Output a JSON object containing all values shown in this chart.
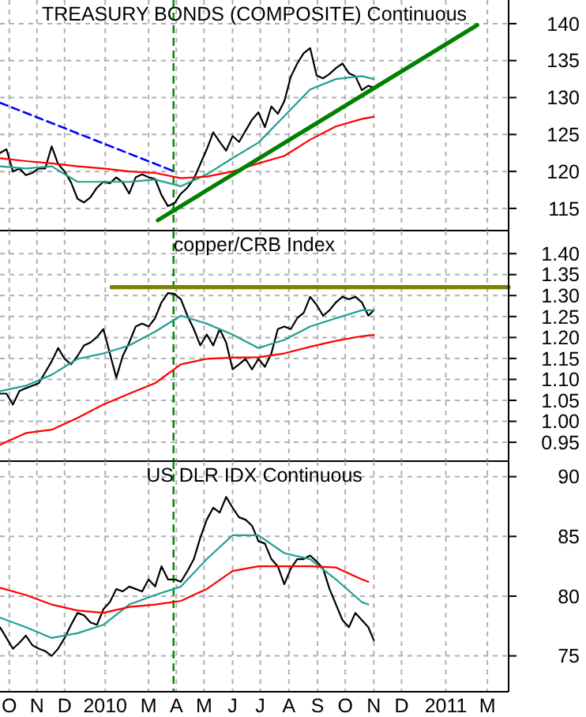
{
  "chart_data": [
    {
      "type": "line",
      "title": "TREASURY BONDS (COMPOSITE) Continuous",
      "xlim": [
        "2009-10-06",
        "2011-04-10"
      ],
      "ylim": [
        112,
        143.2
      ],
      "yticks": [
        115,
        120,
        125,
        130,
        135,
        140
      ],
      "grid": true,
      "tick_labels": "y",
      "xticks": [
        {
          "value": "2009-10-16",
          "label": null
        },
        {
          "value": "2009-11-15",
          "label": null
        },
        {
          "value": "2009-12-15",
          "label": null
        },
        {
          "value": "2010-01-28",
          "label": null
        },
        {
          "value": "2010-03-16",
          "label": null
        },
        {
          "value": "2010-04-15",
          "label": null
        },
        {
          "value": "2010-05-15",
          "label": null
        },
        {
          "value": "2010-06-15",
          "label": null
        },
        {
          "value": "2010-07-15",
          "label": null
        },
        {
          "value": "2010-08-15",
          "label": null
        },
        {
          "value": "2010-09-15",
          "label": null
        },
        {
          "value": "2010-10-15",
          "label": null
        },
        {
          "value": "2010-11-15",
          "label": null
        },
        {
          "value": "2010-12-15",
          "label": null
        },
        {
          "value": "2011-02-01",
          "label": null
        },
        {
          "value": "2011-03-18",
          "label": null
        }
      ],
      "ref_lines": [
        {
          "axis": "x",
          "value": "2010-04-12",
          "color": "#008000",
          "line_style": "dashed"
        }
      ],
      "series": [
        {
          "color": "#000000",
          "x": [
            "2009-10-06",
            "2009-10-13",
            "2009-10-20",
            "2009-10-27",
            "2009-11-03",
            "2009-11-10",
            "2009-11-17",
            "2009-11-24",
            "2009-12-01",
            "2009-12-08",
            "2009-12-15",
            "2009-12-22",
            "2009-12-29",
            "2010-01-05",
            "2010-01-12",
            "2010-01-19",
            "2010-01-26",
            "2010-02-02",
            "2010-02-09",
            "2010-02-16",
            "2010-02-23",
            "2010-03-02",
            "2010-03-09",
            "2010-03-16",
            "2010-03-23",
            "2010-03-30",
            "2010-04-06",
            "2010-04-13",
            "2010-04-20",
            "2010-04-27",
            "2010-05-04",
            "2010-05-11",
            "2010-05-18",
            "2010-05-25",
            "2010-06-01",
            "2010-06-08",
            "2010-06-15",
            "2010-06-22",
            "2010-06-29",
            "2010-07-06",
            "2010-07-13",
            "2010-07-20",
            "2010-07-27",
            "2010-08-03",
            "2010-08-10",
            "2010-08-17",
            "2010-08-24",
            "2010-08-31",
            "2010-09-07",
            "2010-09-14",
            "2010-09-21",
            "2010-09-28",
            "2010-10-05",
            "2010-10-12",
            "2010-10-19",
            "2010-10-26",
            "2010-11-02",
            "2010-11-09",
            "2010-11-15"
          ],
          "values": [
            122.5,
            123.0,
            120.0,
            120.4,
            119.5,
            119.8,
            120.4,
            120.4,
            123.4,
            121.0,
            120.0,
            118.5,
            116.3,
            115.8,
            116.5,
            117.8,
            118.6,
            118.4,
            119.2,
            118.5,
            117.0,
            119.2,
            119.6,
            119.2,
            119.0,
            116.8,
            115.3,
            115.7,
            117.0,
            117.8,
            119.0,
            121.0,
            123.0,
            125.3,
            124.0,
            122.8,
            124.8,
            124.0,
            125.5,
            127.0,
            128.0,
            126.0,
            128.8,
            127.8,
            129.5,
            132.8,
            134.6,
            136.0,
            136.7,
            133.0,
            132.6,
            133.2,
            134.0,
            134.6,
            133.3,
            132.9,
            131.0,
            131.6,
            131.3
          ]
        },
        {
          "color": "#20a090",
          "x": [
            "2009-10-06",
            "2009-11-03",
            "2009-12-01",
            "2009-12-29",
            "2010-01-26",
            "2010-02-23",
            "2010-03-23",
            "2010-04-20",
            "2010-05-18",
            "2010-06-15",
            "2010-07-13",
            "2010-08-10",
            "2010-09-07",
            "2010-10-05",
            "2010-11-02",
            "2010-11-15"
          ],
          "values": [
            120.7,
            120.4,
            120.7,
            118.6,
            118.6,
            118.6,
            118.9,
            118.0,
            119.6,
            121.8,
            123.9,
            127.5,
            131.1,
            132.5,
            132.9,
            132.5
          ]
        },
        {
          "color": "#ff0000",
          "x": [
            "2009-10-06",
            "2009-11-03",
            "2009-12-01",
            "2009-12-29",
            "2010-01-26",
            "2010-02-23",
            "2010-03-23",
            "2010-04-20",
            "2010-05-18",
            "2010-06-15",
            "2010-07-13",
            "2010-08-10",
            "2010-09-07",
            "2010-10-05",
            "2010-11-02",
            "2010-11-15"
          ],
          "values": [
            121.8,
            121.4,
            121.1,
            120.7,
            120.4,
            120.0,
            119.8,
            119.1,
            119.3,
            120.0,
            121.1,
            122.1,
            124.3,
            126.1,
            127.1,
            127.4
          ]
        },
        {
          "color": "#0000ff",
          "line_style": "dashed",
          "x": [
            "2009-10-06",
            "2010-04-11"
          ],
          "values": [
            129.3,
            120.1
          ]
        },
        {
          "color": "#008000",
          "x": [
            "2010-03-26",
            "2011-03-07"
          ],
          "values": [
            113.4,
            139.8
          ]
        }
      ]
    },
    {
      "type": "line",
      "title": "copper/CRB Index",
      "xlim": [
        "2009-10-06",
        "2011-04-10"
      ],
      "ylim": [
        0.905,
        1.455
      ],
      "grid": true,
      "tick_labels": "y",
      "yticks": [
        0.95,
        {
          "value": 1.0,
          "label": "1.00"
        },
        1.05,
        {
          "value": 1.1,
          "label": "1.10"
        },
        1.15,
        {
          "value": 1.2,
          "label": "1.20"
        },
        1.25,
        {
          "value": 1.3,
          "label": "1.30"
        },
        1.35,
        {
          "value": 1.4,
          "label": "1.40"
        }
      ],
      "xticks": [
        {
          "value": "2009-10-16",
          "label": null
        },
        {
          "value": "2009-11-15",
          "label": null
        },
        {
          "value": "2009-12-15",
          "label": null
        },
        {
          "value": "2010-01-28",
          "label": null
        },
        {
          "value": "2010-03-16",
          "label": null
        },
        {
          "value": "2010-04-15",
          "label": null
        },
        {
          "value": "2010-05-15",
          "label": null
        },
        {
          "value": "2010-06-15",
          "label": null
        },
        {
          "value": "2010-07-15",
          "label": null
        },
        {
          "value": "2010-08-15",
          "label": null
        },
        {
          "value": "2010-09-15",
          "label": null
        },
        {
          "value": "2010-10-15",
          "label": null
        },
        {
          "value": "2010-11-15",
          "label": null
        },
        {
          "value": "2010-12-15",
          "label": null
        },
        {
          "value": "2011-02-01",
          "label": null
        },
        {
          "value": "2011-03-18",
          "label": null
        }
      ],
      "ref_lines": [
        {
          "axis": "x",
          "value": "2010-04-12",
          "color": "#008000",
          "line_style": "dashed"
        }
      ],
      "series": [
        {
          "color": "#000000",
          "x": [
            "2009-10-06",
            "2009-10-13",
            "2009-10-20",
            "2009-10-27",
            "2009-11-03",
            "2009-11-10",
            "2009-11-17",
            "2009-11-24",
            "2009-12-01",
            "2009-12-08",
            "2009-12-15",
            "2009-12-22",
            "2009-12-29",
            "2010-01-05",
            "2010-01-12",
            "2010-01-19",
            "2010-01-26",
            "2010-02-02",
            "2010-02-09",
            "2010-02-16",
            "2010-02-23",
            "2010-03-02",
            "2010-03-09",
            "2010-03-16",
            "2010-03-23",
            "2010-03-30",
            "2010-04-06",
            "2010-04-13",
            "2010-04-20",
            "2010-04-27",
            "2010-05-04",
            "2010-05-11",
            "2010-05-18",
            "2010-05-25",
            "2010-06-01",
            "2010-06-08",
            "2010-06-15",
            "2010-06-22",
            "2010-06-29",
            "2010-07-06",
            "2010-07-13",
            "2010-07-20",
            "2010-07-27",
            "2010-08-03",
            "2010-08-10",
            "2010-08-17",
            "2010-08-24",
            "2010-08-31",
            "2010-09-07",
            "2010-09-14",
            "2010-09-21",
            "2010-09-28",
            "2010-10-05",
            "2010-10-12",
            "2010-10-19",
            "2010-10-26",
            "2010-11-02",
            "2010-11-09",
            "2010-11-15"
          ],
          "values": [
            1.066,
            1.066,
            1.04,
            1.072,
            1.079,
            1.085,
            1.091,
            1.117,
            1.143,
            1.175,
            1.149,
            1.136,
            1.156,
            1.181,
            1.188,
            1.201,
            1.22,
            1.162,
            1.104,
            1.156,
            1.188,
            1.226,
            1.233,
            1.226,
            1.246,
            1.284,
            1.306,
            1.304,
            1.291,
            1.252,
            1.22,
            1.181,
            1.207,
            1.181,
            1.22,
            1.188,
            1.124,
            1.136,
            1.149,
            1.124,
            1.149,
            1.13,
            1.162,
            1.22,
            1.226,
            1.22,
            1.246,
            1.259,
            1.297,
            1.278,
            1.252,
            1.265,
            1.284,
            1.297,
            1.291,
            1.297,
            1.284,
            1.252,
            1.265
          ]
        },
        {
          "color": "#20a090",
          "x": [
            "2009-10-06",
            "2009-11-03",
            "2009-12-01",
            "2009-12-29",
            "2010-01-26",
            "2010-02-23",
            "2010-03-23",
            "2010-04-20",
            "2010-05-18",
            "2010-06-15",
            "2010-07-13",
            "2010-08-10",
            "2010-09-07",
            "2010-10-05",
            "2010-11-02",
            "2010-11-15"
          ],
          "values": [
            1.072,
            1.085,
            1.111,
            1.149,
            1.162,
            1.181,
            1.214,
            1.252,
            1.233,
            1.207,
            1.175,
            1.194,
            1.226,
            1.246,
            1.265,
            1.265
          ]
        },
        {
          "color": "#ff0000",
          "x": [
            "2009-10-06",
            "2009-11-03",
            "2009-12-01",
            "2009-12-29",
            "2010-01-26",
            "2010-02-23",
            "2010-03-23",
            "2010-04-20",
            "2010-05-18",
            "2010-06-15",
            "2010-07-13",
            "2010-08-10",
            "2010-09-07",
            "2010-10-05",
            "2010-11-02",
            "2010-11-15"
          ],
          "values": [
            0.944,
            0.972,
            0.98,
            1.008,
            1.04,
            1.066,
            1.091,
            1.136,
            1.149,
            1.152,
            1.153,
            1.162,
            1.178,
            1.192,
            1.203,
            1.206
          ]
        },
        {
          "color": "#808000",
          "x": [
            "2010-02-04",
            "2011-04-10"
          ],
          "values": [
            1.32,
            1.32
          ]
        }
      ]
    },
    {
      "type": "line",
      "title": "US DLR IDX Continuous",
      "xlim": [
        "2009-10-06",
        "2011-04-10"
      ],
      "ylim": [
        72,
        91.3
      ],
      "yticks": [
        75,
        80,
        85,
        90
      ],
      "grid": true,
      "xticks": [
        {
          "value": "2009-10-16",
          "label": "O"
        },
        {
          "value": "2009-11-15",
          "label": "N"
        },
        {
          "value": "2009-12-15",
          "label": "D"
        },
        {
          "value": "2010-01-28",
          "label": "2010"
        },
        {
          "value": "2010-03-16",
          "label": "M"
        },
        {
          "value": "2010-04-15",
          "label": "A"
        },
        {
          "value": "2010-05-15",
          "label": "M"
        },
        {
          "value": "2010-06-15",
          "label": "J"
        },
        {
          "value": "2010-07-15",
          "label": "J"
        },
        {
          "value": "2010-08-15",
          "label": "A"
        },
        {
          "value": "2010-09-15",
          "label": "S"
        },
        {
          "value": "2010-10-15",
          "label": "O"
        },
        {
          "value": "2010-11-15",
          "label": "N"
        },
        {
          "value": "2010-12-15",
          "label": "D"
        },
        {
          "value": "2011-02-01",
          "label": "2011"
        },
        {
          "value": "2011-03-18",
          "label": "M"
        }
      ],
      "ref_lines": [
        {
          "axis": "x",
          "value": "2010-04-12",
          "color": "#008000",
          "line_style": "dashed"
        }
      ],
      "series": [
        {
          "color": "#000000",
          "x": [
            "2009-10-06",
            "2009-10-13",
            "2009-10-20",
            "2009-10-27",
            "2009-11-03",
            "2009-11-10",
            "2009-11-17",
            "2009-11-24",
            "2009-12-01",
            "2009-12-08",
            "2009-12-15",
            "2009-12-22",
            "2009-12-29",
            "2010-01-05",
            "2010-01-12",
            "2010-01-19",
            "2010-01-26",
            "2010-02-02",
            "2010-02-09",
            "2010-02-16",
            "2010-02-23",
            "2010-03-02",
            "2010-03-09",
            "2010-03-16",
            "2010-03-23",
            "2010-03-30",
            "2010-04-06",
            "2010-04-13",
            "2010-04-20",
            "2010-04-27",
            "2010-05-04",
            "2010-05-11",
            "2010-05-18",
            "2010-05-25",
            "2010-06-01",
            "2010-06-08",
            "2010-06-15",
            "2010-06-22",
            "2010-06-29",
            "2010-07-06",
            "2010-07-13",
            "2010-07-20",
            "2010-07-27",
            "2010-08-03",
            "2010-08-10",
            "2010-08-17",
            "2010-08-24",
            "2010-08-31",
            "2010-09-07",
            "2010-09-14",
            "2010-09-21",
            "2010-09-28",
            "2010-10-05",
            "2010-10-12",
            "2010-10-19",
            "2010-10-26",
            "2010-11-02",
            "2010-11-09",
            "2010-11-15"
          ],
          "values": [
            77.4,
            76.5,
            75.6,
            76.1,
            76.7,
            75.9,
            75.6,
            75.4,
            75.0,
            75.6,
            76.5,
            77.6,
            78.6,
            78.4,
            77.8,
            77.6,
            78.9,
            79.5,
            80.6,
            80.4,
            80.8,
            80.6,
            80.4,
            81.4,
            80.8,
            82.5,
            81.4,
            81.4,
            81.2,
            82.1,
            83.1,
            84.9,
            86.4,
            87.4,
            87.0,
            88.3,
            87.4,
            86.6,
            86.4,
            85.9,
            84.6,
            84.4,
            83.1,
            82.5,
            81.0,
            82.3,
            83.1,
            83.1,
            83.4,
            82.9,
            82.3,
            80.6,
            79.3,
            78.0,
            77.4,
            78.6,
            78.0,
            77.4,
            76.3
          ]
        },
        {
          "color": "#20a090",
          "x": [
            "2009-10-06",
            "2009-11-03",
            "2009-12-01",
            "2009-12-29",
            "2010-01-26",
            "2010-02-23",
            "2010-03-23",
            "2010-04-20",
            "2010-05-18",
            "2010-06-15",
            "2010-07-13",
            "2010-08-10",
            "2010-09-07",
            "2010-10-05",
            "2010-11-02",
            "2010-11-09"
          ],
          "values": [
            78.2,
            77.4,
            76.5,
            76.9,
            77.6,
            79.3,
            80.1,
            80.8,
            83.1,
            85.1,
            85.1,
            83.6,
            83.1,
            81.4,
            79.5,
            79.3
          ]
        },
        {
          "color": "#ff0000",
          "x": [
            "2009-10-06",
            "2009-11-03",
            "2009-12-01",
            "2009-12-29",
            "2010-01-26",
            "2010-02-23",
            "2010-03-23",
            "2010-04-20",
            "2010-05-18",
            "2010-06-15",
            "2010-07-13",
            "2010-08-10",
            "2010-09-07",
            "2010-10-05",
            "2010-11-02",
            "2010-11-09"
          ],
          "values": [
            80.7,
            80.1,
            79.3,
            78.8,
            78.6,
            79.1,
            79.3,
            79.6,
            80.6,
            82.1,
            82.5,
            82.5,
            82.5,
            82.4,
            81.4,
            81.2
          ]
        }
      ]
    }
  ]
}
